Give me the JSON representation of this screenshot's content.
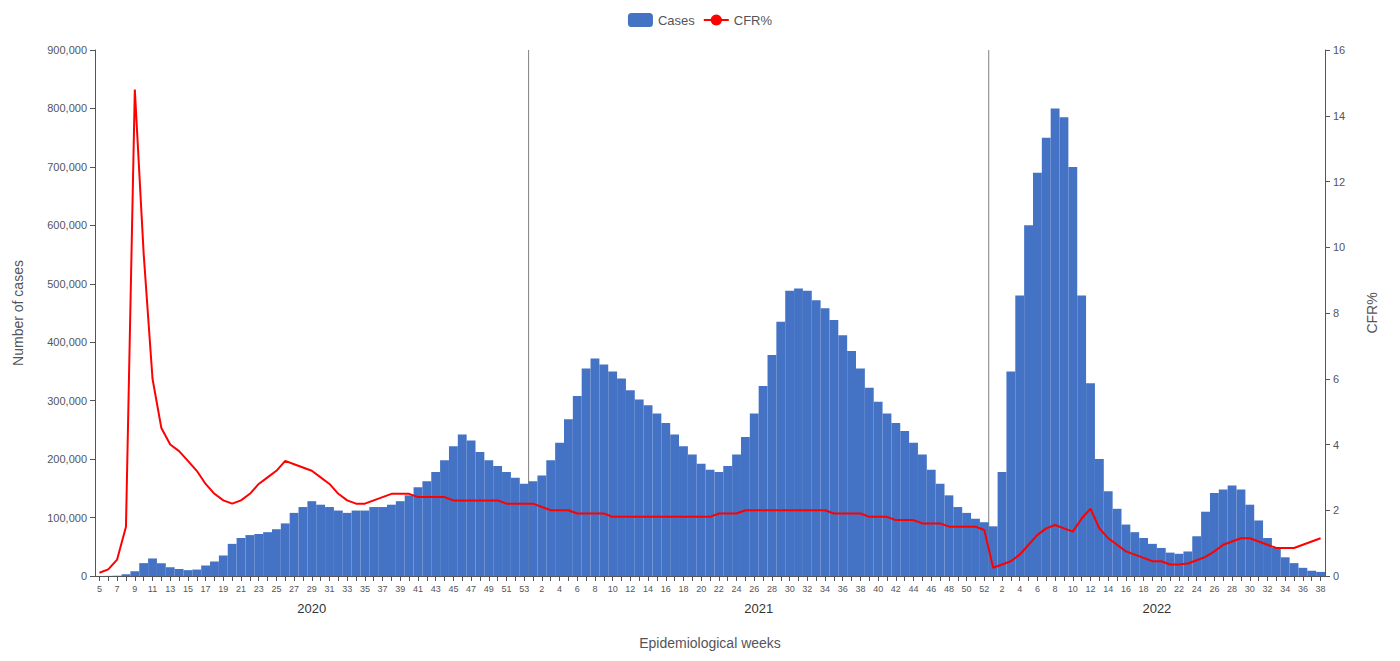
{
  "chart_data": {
    "type": "bar",
    "xlabel": "Epidemiological weeks",
    "ylabel": "Number of cases",
    "y2label": "CFR%",
    "categories": [
      "5",
      null,
      "7",
      null,
      "9",
      null,
      "11",
      null,
      "13",
      null,
      "15",
      null,
      "17",
      null,
      "19",
      null,
      "21",
      null,
      "23",
      null,
      "25",
      null,
      "27",
      null,
      "29",
      null,
      "31",
      null,
      "33",
      null,
      "35",
      null,
      "37",
      null,
      "39",
      null,
      "41",
      null,
      "43",
      null,
      "45",
      null,
      "47",
      null,
      "49",
      null,
      "51",
      null,
      "53",
      null,
      "2",
      null,
      "4",
      null,
      "6",
      null,
      "8",
      null,
      "10",
      null,
      "12",
      null,
      "14",
      null,
      "16",
      null,
      "18",
      null,
      "20",
      null,
      "22",
      null,
      "24",
      null,
      "26",
      null,
      "28",
      null,
      "30",
      null,
      "32",
      null,
      "34",
      null,
      "36",
      null,
      "38",
      null,
      "40",
      null,
      "42",
      null,
      "44",
      null,
      "46",
      null,
      "48",
      null,
      "50",
      null,
      "52",
      null,
      "2",
      null,
      "4",
      null,
      "6",
      null,
      "8",
      null,
      "10",
      null,
      "12",
      null,
      "14",
      null,
      "16",
      null,
      "18",
      null,
      "20",
      null,
      "22",
      null,
      "24",
      null,
      "26",
      null,
      "28",
      null,
      "30",
      null,
      "32",
      null,
      "34",
      null,
      "36",
      null,
      "38"
    ],
    "series": [
      {
        "name": "Cases",
        "type": "bar",
        "color": "#4472C4",
        "values": [
          100,
          200,
          500,
          3000,
          8000,
          22000,
          30000,
          22000,
          15000,
          12000,
          10000,
          11000,
          18000,
          25000,
          35000,
          55000,
          65000,
          70000,
          72000,
          75000,
          80000,
          90000,
          108000,
          118000,
          128000,
          122000,
          118000,
          112000,
          108000,
          112000,
          112000,
          118000,
          118000,
          122000,
          128000,
          138000,
          152000,
          162000,
          178000,
          198000,
          222000,
          242000,
          232000,
          212000,
          198000,
          188000,
          178000,
          168000,
          158000,
          162000,
          172000,
          198000,
          228000,
          268000,
          308000,
          355000,
          372000,
          362000,
          350000,
          338000,
          318000,
          302000,
          292000,
          278000,
          262000,
          242000,
          222000,
          208000,
          192000,
          182000,
          178000,
          188000,
          208000,
          238000,
          278000,
          325000,
          378000,
          435000,
          488000,
          492000,
          488000,
          472000,
          458000,
          438000,
          412000,
          385000,
          355000,
          322000,
          298000,
          278000,
          262000,
          248000,
          228000,
          208000,
          182000,
          158000,
          138000,
          118000,
          108000,
          98000,
          92000,
          85000,
          178000,
          350000,
          480000,
          600000,
          690000,
          750000,
          800000,
          785000,
          700000,
          480000,
          330000,
          200000,
          145000,
          115000,
          88000,
          75000,
          65000,
          55000,
          48000,
          40000,
          38000,
          42000,
          68000,
          110000,
          142000,
          148000,
          155000,
          148000,
          122000,
          95000,
          65000,
          48000,
          32000,
          22000,
          14000,
          9000,
          7000
        ]
      },
      {
        "name": "CFR%",
        "type": "line",
        "axis": "y2",
        "color": "#FF0000",
        "values": [
          0.1,
          0.2,
          0.5,
          1.5,
          14.8,
          9.8,
          6.0,
          4.5,
          4.0,
          3.8,
          3.5,
          3.2,
          2.8,
          2.5,
          2.3,
          2.2,
          2.3,
          2.5,
          2.8,
          3.0,
          3.2,
          3.5,
          3.4,
          3.3,
          3.2,
          3.0,
          2.8,
          2.5,
          2.3,
          2.2,
          2.2,
          2.3,
          2.4,
          2.5,
          2.5,
          2.5,
          2.4,
          2.4,
          2.4,
          2.4,
          2.3,
          2.3,
          2.3,
          2.3,
          2.3,
          2.3,
          2.2,
          2.2,
          2.2,
          2.2,
          2.1,
          2.0,
          2.0,
          2.0,
          1.9,
          1.9,
          1.9,
          1.9,
          1.8,
          1.8,
          1.8,
          1.8,
          1.8,
          1.8,
          1.8,
          1.8,
          1.8,
          1.8,
          1.8,
          1.8,
          1.9,
          1.9,
          1.9,
          2.0,
          2.0,
          2.0,
          2.0,
          2.0,
          2.0,
          2.0,
          2.0,
          2.0,
          2.0,
          1.9,
          1.9,
          1.9,
          1.9,
          1.8,
          1.8,
          1.8,
          1.7,
          1.7,
          1.7,
          1.6,
          1.6,
          1.6,
          1.5,
          1.5,
          1.5,
          1.5,
          1.4,
          0.25,
          0.35,
          0.45,
          0.65,
          0.95,
          1.25,
          1.45,
          1.55,
          1.45,
          1.35,
          1.75,
          2.05,
          1.45,
          1.15,
          0.95,
          0.75,
          0.65,
          0.55,
          0.45,
          0.45,
          0.35,
          0.35,
          0.38,
          0.48,
          0.58,
          0.75,
          0.95,
          1.05,
          1.15,
          1.15,
          1.05,
          0.95,
          0.85,
          0.85,
          0.85,
          0.95,
          1.05,
          1.15
        ]
      }
    ],
    "ylim": [
      0,
      900000
    ],
    "yticks": [
      0,
      {
        "value": 100000,
        "label": "100,000"
      },
      {
        "value": 200000,
        "label": "200,000"
      },
      {
        "value": 300000,
        "label": "300,000"
      },
      {
        "value": 400000,
        "label": "400,000"
      },
      {
        "value": 500000,
        "label": "500,000"
      },
      {
        "value": 600000,
        "label": "600,000"
      },
      {
        "value": 700000,
        "label": "700,000"
      },
      {
        "value": 800000,
        "label": "800,000"
      },
      {
        "value": 900000,
        "label": "900,000"
      }
    ],
    "y2lim": [
      0,
      16
    ],
    "y2ticks": [
      0,
      2,
      4,
      6,
      8,
      10,
      12,
      14,
      16
    ],
    "annotations": [
      {
        "text": "2020",
        "from": 0,
        "to": 48
      },
      {
        "text": "2021",
        "from": 49,
        "to": 100
      },
      {
        "text": "2022",
        "from": 101,
        "to": 138
      }
    ],
    "grid": false,
    "legend": "top"
  }
}
